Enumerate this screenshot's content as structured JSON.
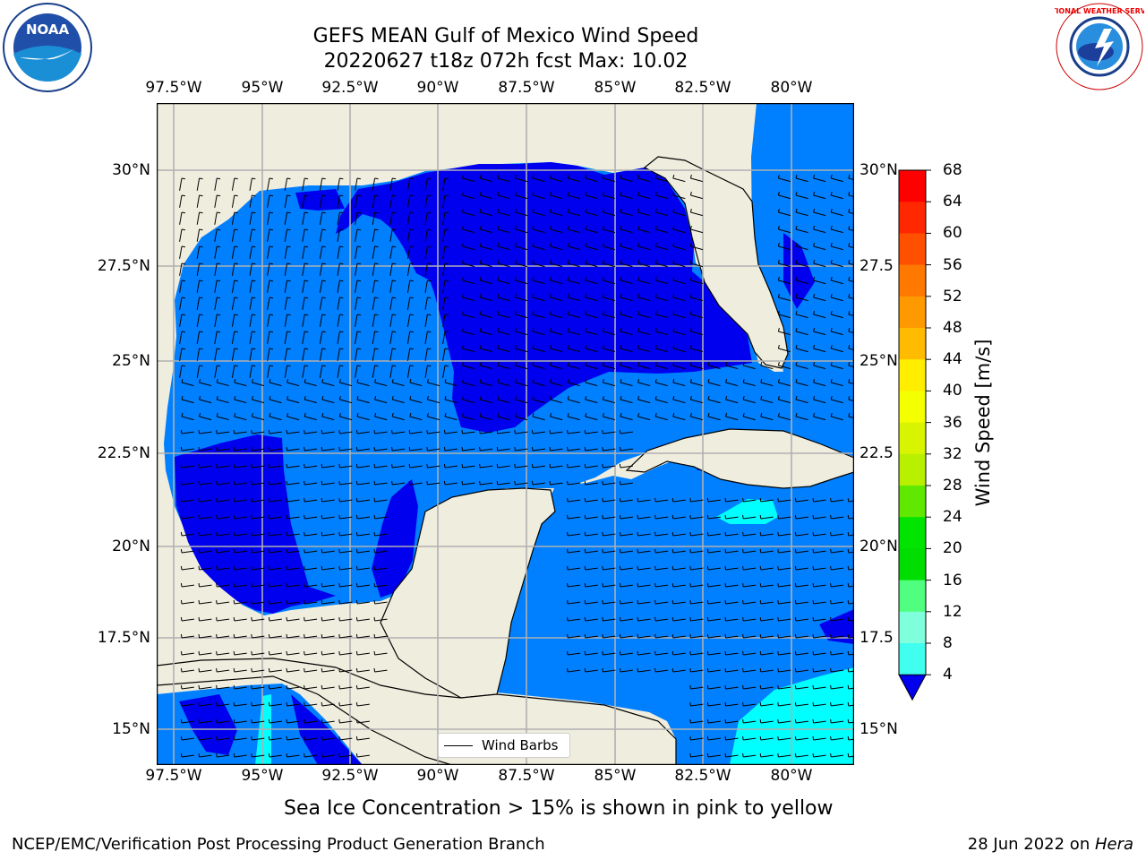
{
  "header": {
    "title_line1": "GEFS MEAN Gulf of Mexico Wind Speed",
    "title_line2": "20220627 t18z 072h fcst   Max: 10.02",
    "left_logo_text": "NOAA",
    "right_logo_text": "NATIONAL WEATHER SERVICE"
  },
  "map": {
    "lon_ticks": [
      "97.5°W",
      "95°W",
      "92.5°W",
      "90°W",
      "87.5°W",
      "85°W",
      "82.5°W",
      "80°W"
    ],
    "lat_ticks": [
      "30°N",
      "27.5°N",
      "25°N",
      "22.5°N",
      "20°N",
      "17.5°N",
      "15°N"
    ],
    "lat_ticks_right": [
      "30°N",
      "27.5",
      "25°N",
      "22.5",
      "20°N",
      "17.5",
      "15°N"
    ],
    "legend_label": "Wind Barbs",
    "colors": {
      "land": "#efedde",
      "wind_4_8": "#0080ff",
      "wind_lt4": "#0000ee",
      "wind_8_12": "#00ffff",
      "grid": "#b0b0b0"
    }
  },
  "colorbar": {
    "title": "Wind Speed [m/s]",
    "levels": [
      "68",
      "64",
      "60",
      "56",
      "52",
      "48",
      "44",
      "40",
      "36",
      "32",
      "28",
      "24",
      "20",
      "16",
      "12",
      "8",
      "4"
    ],
    "colors": [
      "#ff0000",
      "#ff2800",
      "#ff5000",
      "#ff7800",
      "#ff9900",
      "#ffbb00",
      "#ffee00",
      "#f4ff00",
      "#d8f400",
      "#b8f000",
      "#60e800",
      "#00e400",
      "#00dd00",
      "#50ff80",
      "#80ffdd",
      "#40ffee",
      "#00ffff",
      "#0080ff"
    ],
    "extend_color": "#0000ee"
  },
  "footer": {
    "caption": "Sea Ice Concentration > 15% is shown in pink to yellow",
    "left": "NCEP/EMC/Verification Post Processing Product Generation Branch",
    "right_prefix": "28 Jun 2022 on ",
    "right_machine": "Hera"
  }
}
